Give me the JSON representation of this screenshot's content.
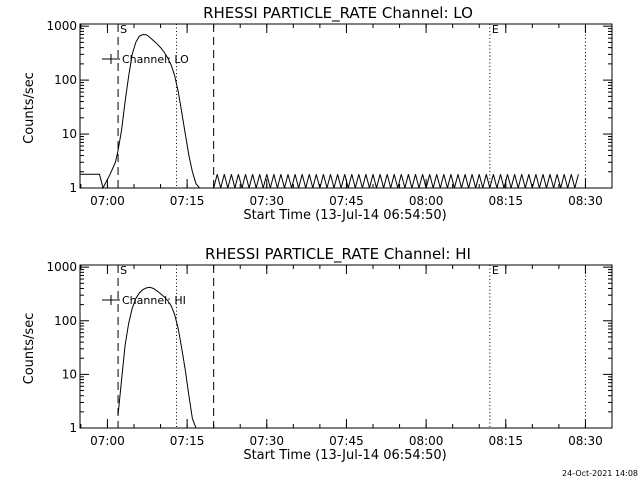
{
  "footer_date": "24-Oct-2021 14:08",
  "chart_data": [
    {
      "type": "line",
      "title": "RHESSI PARTICLE_RATE Channel: LO",
      "xlabel": "Start Time (13-Jul-14 06:54:50)",
      "ylabel": "Counts/sec",
      "ylog": true,
      "ylim": [
        1,
        1000
      ],
      "xlim": [
        "06:54:50",
        "08:35:00"
      ],
      "xticks": [
        "07:00",
        "07:15",
        "07:30",
        "07:45",
        "08:00",
        "08:15",
        "08:30"
      ],
      "yticks": [
        "1",
        "10",
        "100",
        "1000"
      ],
      "legend": {
        "label": "Channel: LO",
        "position": "top-left"
      },
      "markers": [
        {
          "time": "07:02",
          "style": "dashed",
          "label": "S"
        },
        {
          "time": "07:13",
          "style": "dotted",
          "label": ""
        },
        {
          "time": "07:20",
          "style": "dashed",
          "label": ""
        },
        {
          "time": "08:12",
          "style": "dotted",
          "label": "E"
        },
        {
          "time": "08:30",
          "style": "dotted",
          "label": ""
        }
      ],
      "series": [
        {
          "x": [
            "06:54:50",
            "06:58:30",
            "06:59:10",
            "07:00:30",
            "07:01:30",
            "07:02:00",
            "07:02:40",
            "07:03:20",
            "07:04:00",
            "07:04:40",
            "07:05:20",
            "07:06:00",
            "07:06:40",
            "07:07:20",
            "07:08:00",
            "07:08:40",
            "07:09:20",
            "07:10:00",
            "07:10:40",
            "07:11:20",
            "07:12:00",
            "07:12:40",
            "07:13:20",
            "07:14:00",
            "07:14:40",
            "07:15:20",
            "07:16:00",
            "07:16:40",
            "07:17:20",
            "07:18:00",
            "07:18:40"
          ],
          "y": [
            1.8,
            1.8,
            1,
            1.8,
            3,
            5,
            12,
            40,
            120,
            300,
            500,
            650,
            700,
            690,
            620,
            540,
            470,
            400,
            330,
            260,
            190,
            120,
            60,
            25,
            10,
            4,
            2,
            1.2,
            1,
            1,
            1
          ]
        }
      ],
      "baseline_noise": {
        "from": "07:20",
        "to": "08:29",
        "low": 1,
        "high": 1.8
      }
    },
    {
      "type": "line",
      "title": "RHESSI PARTICLE_RATE Channel: HI",
      "xlabel": "Start Time (13-Jul-14 06:54:50)",
      "ylabel": "Counts/sec",
      "ylog": true,
      "ylim": [
        1,
        1000
      ],
      "xlim": [
        "06:54:50",
        "08:35:00"
      ],
      "xticks": [
        "07:00",
        "07:15",
        "07:30",
        "07:45",
        "08:00",
        "08:15",
        "08:30"
      ],
      "yticks": [
        "1",
        "10",
        "100",
        "1000"
      ],
      "legend": {
        "label": "Channel: HI",
        "position": "top-left"
      },
      "markers": [
        {
          "time": "07:02",
          "style": "dashed",
          "label": "S"
        },
        {
          "time": "07:13",
          "style": "dotted",
          "label": ""
        },
        {
          "time": "07:20",
          "style": "dashed",
          "label": ""
        },
        {
          "time": "08:12",
          "style": "dotted",
          "label": "E"
        },
        {
          "time": "08:30",
          "style": "dotted",
          "label": ""
        }
      ],
      "series": [
        {
          "x": [
            "07:02:00",
            "07:02:40",
            "07:03:20",
            "07:04:00",
            "07:04:40",
            "07:05:20",
            "07:06:00",
            "07:06:40",
            "07:07:20",
            "07:08:00",
            "07:08:40",
            "07:09:20",
            "07:10:00",
            "07:10:40",
            "07:11:20",
            "07:12:00",
            "07:12:40",
            "07:13:20",
            "07:14:00",
            "07:14:40",
            "07:15:20",
            "07:16:00",
            "07:16:40"
          ],
          "y": [
            1.8,
            8,
            35,
            90,
            170,
            260,
            330,
            380,
            410,
            420,
            400,
            360,
            320,
            280,
            240,
            190,
            130,
            70,
            30,
            12,
            4,
            1.5,
            1
          ]
        }
      ]
    }
  ]
}
